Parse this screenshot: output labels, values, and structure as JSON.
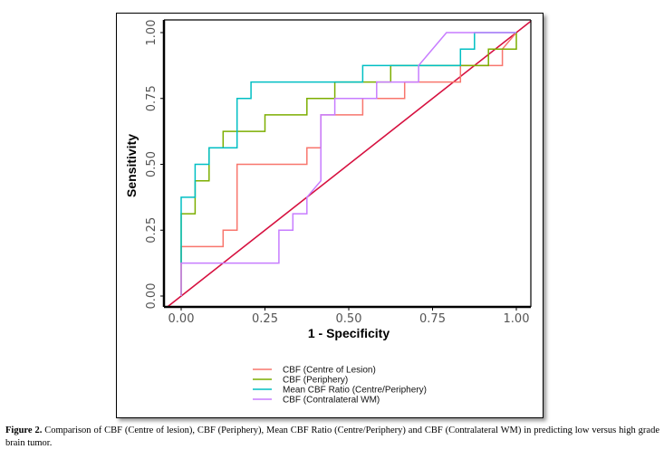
{
  "chart_data": {
    "type": "line",
    "title": "",
    "xlabel": "1 - Specificity",
    "ylabel": "Sensitivity",
    "xlim": [
      -0.05,
      1.05
    ],
    "ylim": [
      -0.04,
      1.05
    ],
    "xticks": [
      "0.00",
      "0.25",
      "0.50",
      "0.75",
      "1.00"
    ],
    "yticks": [
      "0.00",
      "0.25",
      "0.50",
      "0.75",
      "1.00"
    ],
    "grid": false,
    "legend_position": "bottom",
    "reference_line": {
      "name": "Chance diagonal",
      "color": "#d6103f",
      "x": [
        -0.05,
        1.05
      ],
      "y": [
        -0.05,
        1.05
      ]
    },
    "series": [
      {
        "name": "CBF (Centre of Lesion)",
        "color": "#f8766d",
        "x": [
          0,
          0,
          0.125,
          0.125,
          0.1667,
          0.1667,
          0.375,
          0.375,
          0.4167,
          0.4167,
          0.5417,
          0.5417,
          0.6667,
          0.6667,
          0.8333,
          0.8333,
          0.9583,
          0.9583,
          1.0
        ],
        "y": [
          0,
          0.1875,
          0.1875,
          0.25,
          0.25,
          0.5,
          0.5,
          0.5625,
          0.5625,
          0.6875,
          0.6875,
          0.75,
          0.75,
          0.8125,
          0.8125,
          0.875,
          0.875,
          0.9375,
          1.0
        ]
      },
      {
        "name": "CBF (Periphery)",
        "color": "#7cae00",
        "x": [
          0,
          0,
          0.0417,
          0.0417,
          0.0833,
          0.0833,
          0.125,
          0.125,
          0.25,
          0.25,
          0.375,
          0.375,
          0.4583,
          0.4583,
          0.625,
          0.625,
          0.9167,
          0.9167,
          1.0,
          1.0
        ],
        "y": [
          0,
          0.3125,
          0.3125,
          0.4375,
          0.4375,
          0.5625,
          0.5625,
          0.625,
          0.625,
          0.6875,
          0.6875,
          0.75,
          0.75,
          0.8125,
          0.8125,
          0.875,
          0.875,
          0.9375,
          0.9375,
          1.0
        ]
      },
      {
        "name": "Mean CBF Ratio (Centre/Periphery)",
        "color": "#00bfc4",
        "x": [
          0,
          0,
          0.0417,
          0.0417,
          0.0833,
          0.0833,
          0.1667,
          0.1667,
          0.2083,
          0.2083,
          0.5417,
          0.5417,
          0.8333,
          0.8333,
          0.875,
          0.875,
          1.0
        ],
        "y": [
          0.125,
          0.375,
          0.375,
          0.5,
          0.5,
          0.5625,
          0.5625,
          0.75,
          0.75,
          0.8125,
          0.8125,
          0.875,
          0.875,
          0.9375,
          0.9375,
          1.0,
          1.0
        ]
      },
      {
        "name": "CBF (Contralateral WM)",
        "color": "#c77cff",
        "x": [
          0,
          0,
          0.2917,
          0.2917,
          0.3333,
          0.3333,
          0.375,
          0.375,
          0.4167,
          0.4167,
          0.4583,
          0.4583,
          0.5833,
          0.5833,
          0.7083,
          0.7083,
          0.7917,
          1.0
        ],
        "y": [
          0,
          0.125,
          0.125,
          0.25,
          0.25,
          0.3125,
          0.3125,
          0.375,
          0.4375,
          0.6875,
          0.6875,
          0.75,
          0.75,
          0.8125,
          0.8125,
          0.875,
          1.0,
          1.0
        ]
      }
    ]
  },
  "caption": {
    "label": "Figure 2.",
    "text": " Comparison of CBF (Centre of lesion), CBF (Periphery), Mean CBF Ratio (Centre/Periphery) and CBF (Contralateral WM) in predicting low versus high grade brain tumor."
  }
}
